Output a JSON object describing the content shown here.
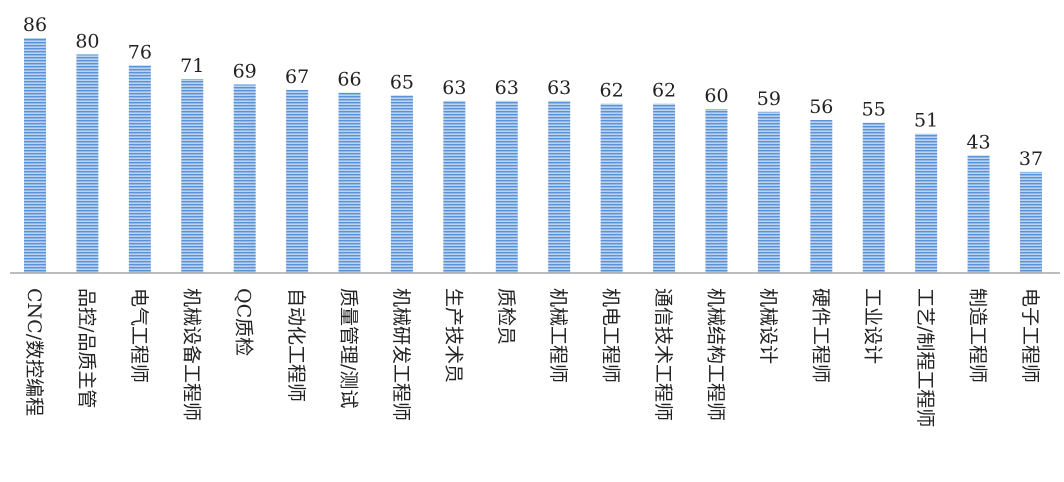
{
  "chart_data": {
    "type": "bar",
    "categories": [
      "CNC/数控编程",
      "品控/品质主管",
      "电气工程师",
      "机械设备工程师",
      "QC质检",
      "自动化工程师",
      "质量管理/测试",
      "机械研发工程师",
      "生产技术员",
      "质检员",
      "机械工程师",
      "机电工程师",
      "通信技术工程师",
      "机械结构工程师",
      "机械设计",
      "硬件工程师",
      "工业设计",
      "工艺/制程工程师",
      "制造工程师",
      "电子工程师"
    ],
    "values": [
      86,
      80,
      76,
      71,
      69,
      67,
      66,
      65,
      63,
      63,
      63,
      62,
      62,
      60,
      59,
      56,
      55,
      51,
      43,
      37
    ],
    "ylim": [
      0,
      86
    ],
    "grid": false,
    "legend": "none",
    "colors": {
      "bar_light": "#b9d2ef",
      "bar_stripe": "#5b92d6",
      "axis": "#a6a6a6"
    }
  }
}
